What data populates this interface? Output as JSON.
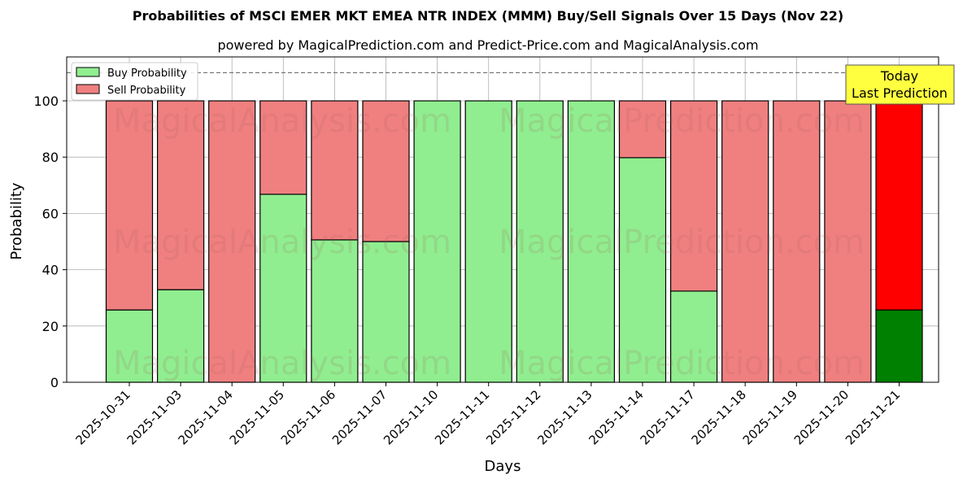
{
  "chart_data": {
    "type": "bar",
    "stacked": true,
    "title": "Probabilities of MSCI EMER MKT EMEA NTR INDEX (MMM) Buy/Sell Signals Over 15 Days (Nov 22)",
    "subtitle": "powered by MagicalPrediction.com and Predict-Price.com and MagicalAnalysis.com",
    "xlabel": "Days",
    "ylabel": "Probability",
    "ylim": [
      0,
      115
    ],
    "yticks": [
      0,
      20,
      40,
      60,
      80,
      100
    ],
    "grid": true,
    "reference_line": 110,
    "legend_position": "upper left",
    "categories": [
      "2025-10-31",
      "2025-11-03",
      "2025-11-04",
      "2025-11-05",
      "2025-11-06",
      "2025-11-07",
      "2025-11-10",
      "2025-11-11",
      "2025-11-12",
      "2025-11-13",
      "2025-11-14",
      "2025-11-17",
      "2025-11-18",
      "2025-11-19",
      "2025-11-20",
      "2025-11-21"
    ],
    "series": [
      {
        "name": "Buy Probability",
        "color": "#90ee90",
        "values": [
          25.7,
          32.9,
          0,
          66.8,
          50.6,
          50.0,
          100,
          100,
          100,
          100,
          79.8,
          32.4,
          0,
          0,
          0,
          25.7
        ]
      },
      {
        "name": "Sell Probability",
        "color": "#f08080",
        "values": [
          74.3,
          67.1,
          100,
          33.2,
          49.4,
          50.0,
          0,
          0,
          0,
          0,
          20.2,
          67.6,
          100,
          100,
          100,
          74.3
        ]
      }
    ],
    "highlight": {
      "index": 15,
      "buy_color": "#008000",
      "sell_color": "#ff0000"
    },
    "annotation": {
      "text_line1": "Today",
      "text_line2": "Last Prediction",
      "background": "#ffff40"
    },
    "watermarks": [
      "MagicalAnalysis.com",
      "MagicalPrediction.com"
    ]
  }
}
